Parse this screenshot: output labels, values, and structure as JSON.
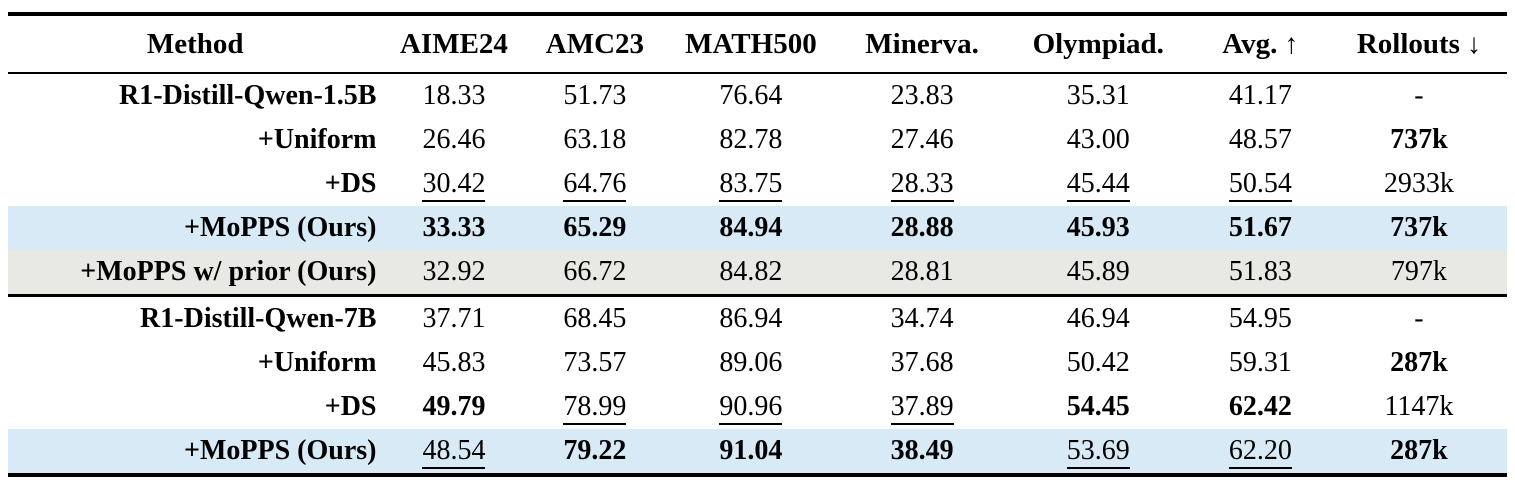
{
  "colors": {
    "highlight_blue": "#d9eaf7",
    "highlight_gray": "#e8e8e5",
    "rule": "#000000",
    "background": "#ffffff"
  },
  "icons": {
    "up_arrow": "↑",
    "down_arrow": "↓"
  },
  "table": {
    "columns": [
      {
        "key": "method",
        "label": "Method",
        "arrow": ""
      },
      {
        "key": "aime24",
        "label": "AIME24",
        "arrow": ""
      },
      {
        "key": "amc23",
        "label": "AMC23",
        "arrow": ""
      },
      {
        "key": "math500",
        "label": "MATH500",
        "arrow": ""
      },
      {
        "key": "minerva",
        "label": "Minerva.",
        "arrow": ""
      },
      {
        "key": "olympiad",
        "label": "Olympiad.",
        "arrow": ""
      },
      {
        "key": "avg",
        "label": "Avg.",
        "arrow": "↑"
      },
      {
        "key": "rollouts",
        "label": "Rollouts",
        "arrow": "↓"
      }
    ],
    "sections": [
      {
        "rows": [
          {
            "method": "R1-Distill-Qwen-1.5B",
            "highlight": null,
            "cells": [
              {
                "text": "18.33",
                "style": "plain"
              },
              {
                "text": "51.73",
                "style": "plain"
              },
              {
                "text": "76.64",
                "style": "plain"
              },
              {
                "text": "23.83",
                "style": "plain"
              },
              {
                "text": "35.31",
                "style": "plain"
              },
              {
                "text": "41.17",
                "style": "plain"
              },
              {
                "text": "-",
                "style": "plain"
              }
            ]
          },
          {
            "method": "+Uniform",
            "highlight": null,
            "cells": [
              {
                "text": "26.46",
                "style": "plain"
              },
              {
                "text": "63.18",
                "style": "plain"
              },
              {
                "text": "82.78",
                "style": "plain"
              },
              {
                "text": "27.46",
                "style": "plain"
              },
              {
                "text": "43.00",
                "style": "plain"
              },
              {
                "text": "48.57",
                "style": "plain"
              },
              {
                "text": "737k",
                "style": "bold"
              }
            ]
          },
          {
            "method": "+DS",
            "highlight": null,
            "cells": [
              {
                "text": "30.42",
                "style": "underline"
              },
              {
                "text": "64.76",
                "style": "underline"
              },
              {
                "text": "83.75",
                "style": "underline"
              },
              {
                "text": "28.33",
                "style": "underline"
              },
              {
                "text": "45.44",
                "style": "underline"
              },
              {
                "text": "50.54",
                "style": "underline"
              },
              {
                "text": "2933k",
                "style": "plain"
              }
            ]
          },
          {
            "method": "+MoPPS (Ours)",
            "highlight": "blue",
            "cells": [
              {
                "text": "33.33",
                "style": "bold"
              },
              {
                "text": "65.29",
                "style": "bold"
              },
              {
                "text": "84.94",
                "style": "bold"
              },
              {
                "text": "28.88",
                "style": "bold"
              },
              {
                "text": "45.93",
                "style": "bold"
              },
              {
                "text": "51.67",
                "style": "bold"
              },
              {
                "text": "737k",
                "style": "bold"
              }
            ]
          },
          {
            "method": "+MoPPS w/ prior (Ours)",
            "highlight": "gray",
            "cells": [
              {
                "text": "32.92",
                "style": "plain"
              },
              {
                "text": "66.72",
                "style": "plain"
              },
              {
                "text": "84.82",
                "style": "plain"
              },
              {
                "text": "28.81",
                "style": "plain"
              },
              {
                "text": "45.89",
                "style": "plain"
              },
              {
                "text": "51.83",
                "style": "plain"
              },
              {
                "text": "797k",
                "style": "plain"
              }
            ]
          }
        ]
      },
      {
        "rows": [
          {
            "method": "R1-Distill-Qwen-7B",
            "highlight": null,
            "cells": [
              {
                "text": "37.71",
                "style": "plain"
              },
              {
                "text": "68.45",
                "style": "plain"
              },
              {
                "text": "86.94",
                "style": "plain"
              },
              {
                "text": "34.74",
                "style": "plain"
              },
              {
                "text": "46.94",
                "style": "plain"
              },
              {
                "text": "54.95",
                "style": "plain"
              },
              {
                "text": "-",
                "style": "plain"
              }
            ]
          },
          {
            "method": "+Uniform",
            "highlight": null,
            "cells": [
              {
                "text": "45.83",
                "style": "plain"
              },
              {
                "text": "73.57",
                "style": "plain"
              },
              {
                "text": "89.06",
                "style": "plain"
              },
              {
                "text": "37.68",
                "style": "plain"
              },
              {
                "text": "50.42",
                "style": "plain"
              },
              {
                "text": "59.31",
                "style": "plain"
              },
              {
                "text": "287k",
                "style": "bold"
              }
            ]
          },
          {
            "method": "+DS",
            "highlight": null,
            "cells": [
              {
                "text": "49.79",
                "style": "bold"
              },
              {
                "text": "78.99",
                "style": "underline"
              },
              {
                "text": "90.96",
                "style": "underline"
              },
              {
                "text": "37.89",
                "style": "underline"
              },
              {
                "text": "54.45",
                "style": "bold"
              },
              {
                "text": "62.42",
                "style": "bold"
              },
              {
                "text": "1147k",
                "style": "plain"
              }
            ]
          },
          {
            "method": "+MoPPS (Ours)",
            "highlight": "blue",
            "cells": [
              {
                "text": "48.54",
                "style": "underline"
              },
              {
                "text": "79.22",
                "style": "bold"
              },
              {
                "text": "91.04",
                "style": "bold"
              },
              {
                "text": "38.49",
                "style": "bold"
              },
              {
                "text": "53.69",
                "style": "underline"
              },
              {
                "text": "62.20",
                "style": "underline"
              },
              {
                "text": "287k",
                "style": "bold"
              }
            ]
          }
        ]
      }
    ]
  }
}
